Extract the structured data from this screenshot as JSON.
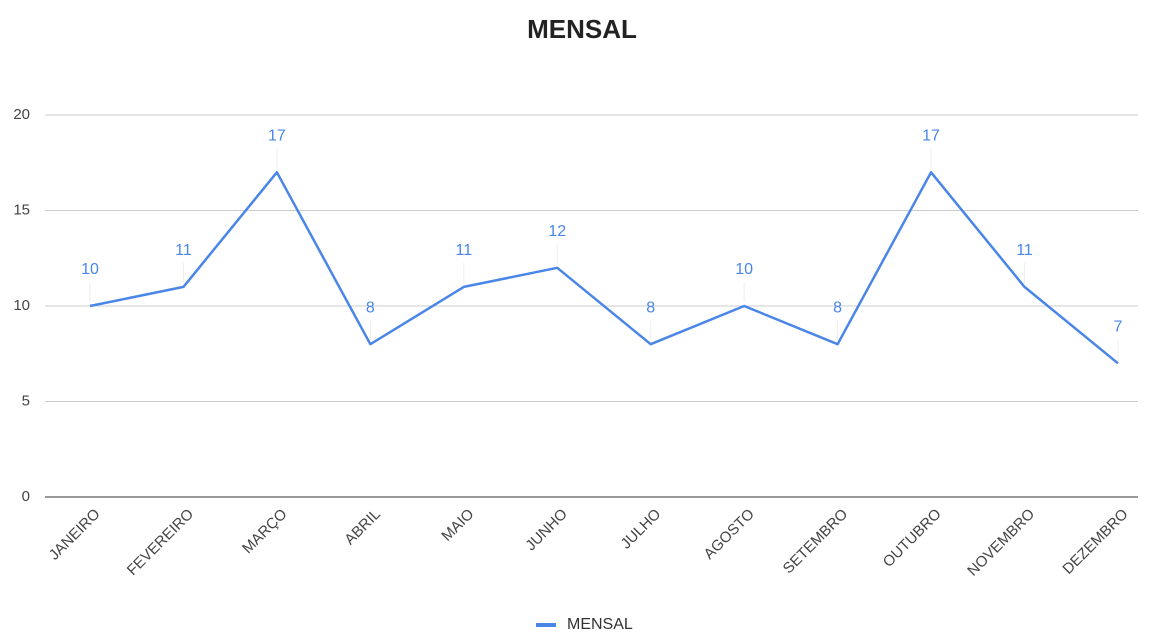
{
  "chart_data": {
    "type": "line",
    "title": "MENSAL",
    "categories": [
      "JANEIRO",
      "FEVEREIRO",
      "MARÇO",
      "ABRIL",
      "MAIO",
      "JUNHO",
      "JULHO",
      "AGOSTO",
      "SETEMBRO",
      "OUTUBRO",
      "NOVEMBRO",
      "DEZEMBRO"
    ],
    "series": [
      {
        "name": "MENSAL",
        "color": "#4a86e8",
        "values": [
          10,
          11,
          17,
          8,
          11,
          12,
          8,
          10,
          8,
          17,
          11,
          7
        ]
      }
    ],
    "ylim": [
      0,
      20
    ],
    "yticks": [
      0,
      5,
      10,
      15,
      20
    ],
    "grid": true,
    "legend": "bottom",
    "data_labels": true
  }
}
